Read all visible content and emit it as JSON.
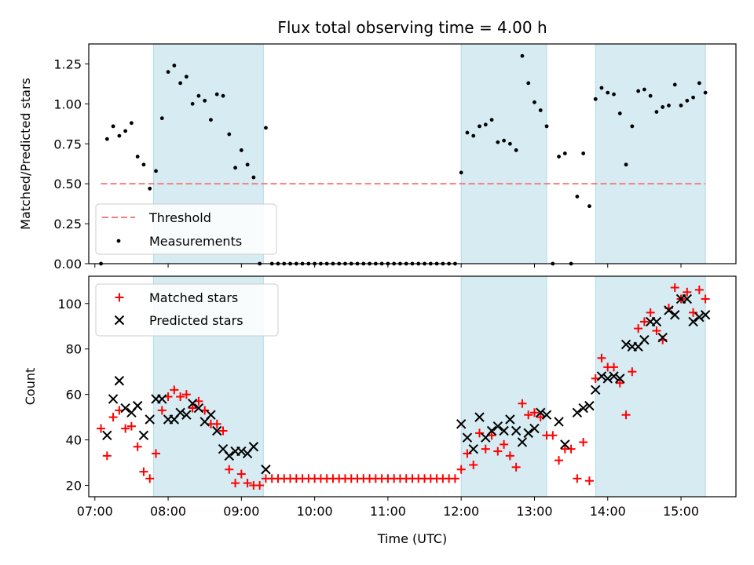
{
  "chart_data": [
    {
      "type": "scatter",
      "title": "Flux total observing time = 4.00 h",
      "xlabel": "",
      "ylabel": "Matched/Predicted stars",
      "ylim": [
        0,
        1.375
      ],
      "yticks": [
        0.0,
        0.25,
        0.5,
        0.75,
        1.0,
        1.25
      ],
      "ytick_labels": [
        "0.00",
        "0.25",
        "0.50",
        "0.75",
        "1.00",
        "1.25"
      ],
      "shaded_intervals": [
        [
          "07:48",
          "09:18"
        ],
        [
          "12:00",
          "13:10"
        ],
        [
          "13:50",
          "15:20"
        ]
      ],
      "threshold": {
        "value": 0.5,
        "x_range": [
          "07:05",
          "15:20"
        ],
        "color": "#f08080",
        "name": "Threshold"
      },
      "legend": {
        "position": "lower-left",
        "entries": [
          "Threshold",
          "Measurements"
        ]
      },
      "series": [
        {
          "name": "Measurements",
          "color": "#000000",
          "x": [
            "07:05",
            "07:10",
            "07:15",
            "07:20",
            "07:25",
            "07:30",
            "07:35",
            "07:40",
            "07:45",
            "07:50",
            "07:55",
            "08:00",
            "08:05",
            "08:10",
            "08:15",
            "08:20",
            "08:25",
            "08:30",
            "08:35",
            "08:40",
            "08:45",
            "08:50",
            "08:55",
            "09:00",
            "09:05",
            "09:10",
            "09:15",
            "09:20",
            "09:25",
            "09:30",
            "09:35",
            "09:40",
            "09:45",
            "09:50",
            "09:55",
            "10:00",
            "10:05",
            "10:10",
            "10:15",
            "10:20",
            "10:25",
            "10:30",
            "10:35",
            "10:40",
            "10:45",
            "10:50",
            "10:55",
            "11:00",
            "11:05",
            "11:10",
            "11:15",
            "11:20",
            "11:25",
            "11:30",
            "11:35",
            "11:40",
            "11:45",
            "11:50",
            "11:55",
            "12:00",
            "12:05",
            "12:10",
            "12:15",
            "12:20",
            "12:25",
            "12:30",
            "12:35",
            "12:40",
            "12:45",
            "12:50",
            "12:55",
            "13:00",
            "13:05",
            "13:10",
            "13:15",
            "13:20",
            "13:25",
            "13:30",
            "13:35",
            "13:40",
            "13:45",
            "13:50",
            "13:55",
            "14:00",
            "14:05",
            "14:10",
            "14:15",
            "14:20",
            "14:25",
            "14:30",
            "14:35",
            "14:40",
            "14:45",
            "14:50",
            "14:55",
            "15:00",
            "15:05",
            "15:10",
            "15:15",
            "15:20"
          ],
          "y": [
            0.0,
            0.78,
            0.86,
            0.8,
            0.83,
            0.88,
            0.67,
            0.62,
            0.47,
            0.58,
            0.91,
            1.2,
            1.24,
            1.13,
            1.17,
            1.0,
            1.05,
            1.02,
            0.9,
            1.06,
            1.05,
            0.81,
            0.6,
            0.71,
            0.62,
            0.54,
            0.0,
            0.85,
            0.0,
            0.0,
            0.0,
            0.0,
            0.0,
            0.0,
            0.0,
            0.0,
            0.0,
            0.0,
            0.0,
            0.0,
            0.0,
            0.0,
            0.0,
            0.0,
            0.0,
            0.0,
            0.0,
            0.0,
            0.0,
            0.0,
            0.0,
            0.0,
            0.0,
            0.0,
            0.0,
            0.0,
            0.0,
            0.0,
            0.0,
            0.57,
            0.82,
            0.8,
            0.86,
            0.87,
            0.9,
            0.76,
            0.77,
            0.75,
            0.71,
            1.3,
            1.13,
            1.01,
            0.96,
            0.86,
            0.0,
            0.67,
            0.69,
            0.0,
            0.42,
            0.69,
            0.36,
            1.03,
            1.1,
            1.07,
            1.06,
            0.94,
            0.62,
            0.86,
            1.08,
            1.09,
            1.05,
            0.95,
            0.98,
            0.99,
            1.12,
            0.99,
            1.02,
            1.04,
            1.13,
            1.07
          ]
        }
      ]
    },
    {
      "type": "scatter",
      "title": "",
      "xlabel": "Time (UTC)",
      "ylabel": "Count",
      "xlim": [
        "06:55",
        "15:45"
      ],
      "ylim": [
        15,
        112
      ],
      "xticks": [
        "07:00",
        "08:00",
        "09:00",
        "10:00",
        "11:00",
        "12:00",
        "13:00",
        "14:00",
        "15:00"
      ],
      "yticks": [
        20,
        40,
        60,
        80,
        100
      ],
      "ytick_labels": [
        "20",
        "40",
        "60",
        "80",
        "100"
      ],
      "shaded_intervals": [
        [
          "07:48",
          "09:18"
        ],
        [
          "12:00",
          "13:10"
        ],
        [
          "13:50",
          "15:20"
        ]
      ],
      "legend": {
        "position": "top-left",
        "entries": [
          "Matched stars",
          "Predicted stars"
        ]
      },
      "series": [
        {
          "name": "Matched stars",
          "marker": "+",
          "color": "#ff0000",
          "x": [
            "07:05",
            "07:10",
            "07:15",
            "07:20",
            "07:25",
            "07:30",
            "07:35",
            "07:40",
            "07:45",
            "07:50",
            "07:55",
            "08:00",
            "08:05",
            "08:10",
            "08:15",
            "08:20",
            "08:25",
            "08:30",
            "08:35",
            "08:40",
            "08:45",
            "08:50",
            "08:55",
            "09:00",
            "09:05",
            "09:10",
            "09:15",
            "09:20",
            "09:25",
            "09:30",
            "09:35",
            "09:40",
            "09:45",
            "09:50",
            "09:55",
            "10:00",
            "10:05",
            "10:10",
            "10:15",
            "10:20",
            "10:25",
            "10:30",
            "10:35",
            "10:40",
            "10:45",
            "10:50",
            "10:55",
            "11:00",
            "11:05",
            "11:10",
            "11:15",
            "11:20",
            "11:25",
            "11:30",
            "11:35",
            "11:40",
            "11:45",
            "11:50",
            "11:55",
            "12:00",
            "12:05",
            "12:10",
            "12:15",
            "12:20",
            "12:25",
            "12:30",
            "12:35",
            "12:40",
            "12:45",
            "12:50",
            "12:55",
            "13:00",
            "13:05",
            "13:10",
            "13:15",
            "13:20",
            "13:25",
            "13:30",
            "13:35",
            "13:40",
            "13:45",
            "13:50",
            "13:55",
            "14:00",
            "14:05",
            "14:10",
            "14:15",
            "14:20",
            "14:25",
            "14:30",
            "14:35",
            "14:40",
            "14:45",
            "14:50",
            "14:55",
            "15:00",
            "15:05",
            "15:10",
            "15:15",
            "15:20"
          ],
          "y": [
            45,
            33,
            50,
            53,
            45,
            46,
            37,
            26,
            23,
            34,
            53,
            59,
            62,
            59,
            60,
            54,
            57,
            53,
            47,
            47,
            44,
            27,
            21,
            25,
            21,
            20,
            20,
            23,
            23,
            23,
            23,
            23,
            23,
            23,
            23,
            23,
            23,
            23,
            23,
            23,
            23,
            23,
            23,
            23,
            23,
            23,
            23,
            23,
            23,
            23,
            23,
            23,
            23,
            23,
            23,
            23,
            23,
            23,
            23,
            27,
            34,
            29,
            43,
            36,
            42,
            35,
            38,
            33,
            28,
            56,
            51,
            52,
            50,
            42,
            42,
            31,
            36,
            36,
            23,
            39,
            22,
            67,
            76,
            72,
            72,
            65,
            51,
            70,
            89,
            92,
            96,
            88,
            84,
            98,
            107,
            102,
            105,
            96,
            106,
            102
          ]
        },
        {
          "name": "Predicted stars",
          "marker": "x",
          "color": "#000000",
          "x": [
            "07:10",
            "07:15",
            "07:20",
            "07:25",
            "07:30",
            "07:35",
            "07:40",
            "07:45",
            "07:50",
            "07:55",
            "08:00",
            "08:05",
            "08:10",
            "08:15",
            "08:20",
            "08:25",
            "08:30",
            "08:35",
            "08:40",
            "08:45",
            "08:50",
            "08:55",
            "09:00",
            "09:05",
            "09:10",
            "09:20",
            "12:00",
            "12:05",
            "12:10",
            "12:15",
            "12:20",
            "12:25",
            "12:30",
            "12:35",
            "12:40",
            "12:45",
            "12:50",
            "12:55",
            "13:00",
            "13:05",
            "13:10",
            "13:20",
            "13:25",
            "13:35",
            "13:40",
            "13:45",
            "13:50",
            "13:55",
            "14:00",
            "14:05",
            "14:10",
            "14:15",
            "14:20",
            "14:25",
            "14:30",
            "14:35",
            "14:40",
            "14:45",
            "14:50",
            "14:55",
            "15:00",
            "15:05",
            "15:10",
            "15:15",
            "15:20"
          ],
          "y": [
            42,
            58,
            66,
            54,
            52,
            55,
            42,
            49,
            58,
            58,
            49,
            49,
            52,
            51,
            56,
            54,
            48,
            51,
            44,
            36,
            33,
            35,
            35,
            34,
            37,
            27,
            47,
            41,
            36,
            50,
            41,
            44,
            46,
            44,
            49,
            44,
            39,
            43,
            45,
            52,
            51,
            48,
            38,
            52,
            54,
            55,
            62,
            68,
            67,
            68,
            67,
            82,
            81,
            81,
            84,
            92,
            92,
            85,
            97,
            95,
            102,
            102,
            92,
            94,
            95
          ]
        }
      ]
    }
  ]
}
